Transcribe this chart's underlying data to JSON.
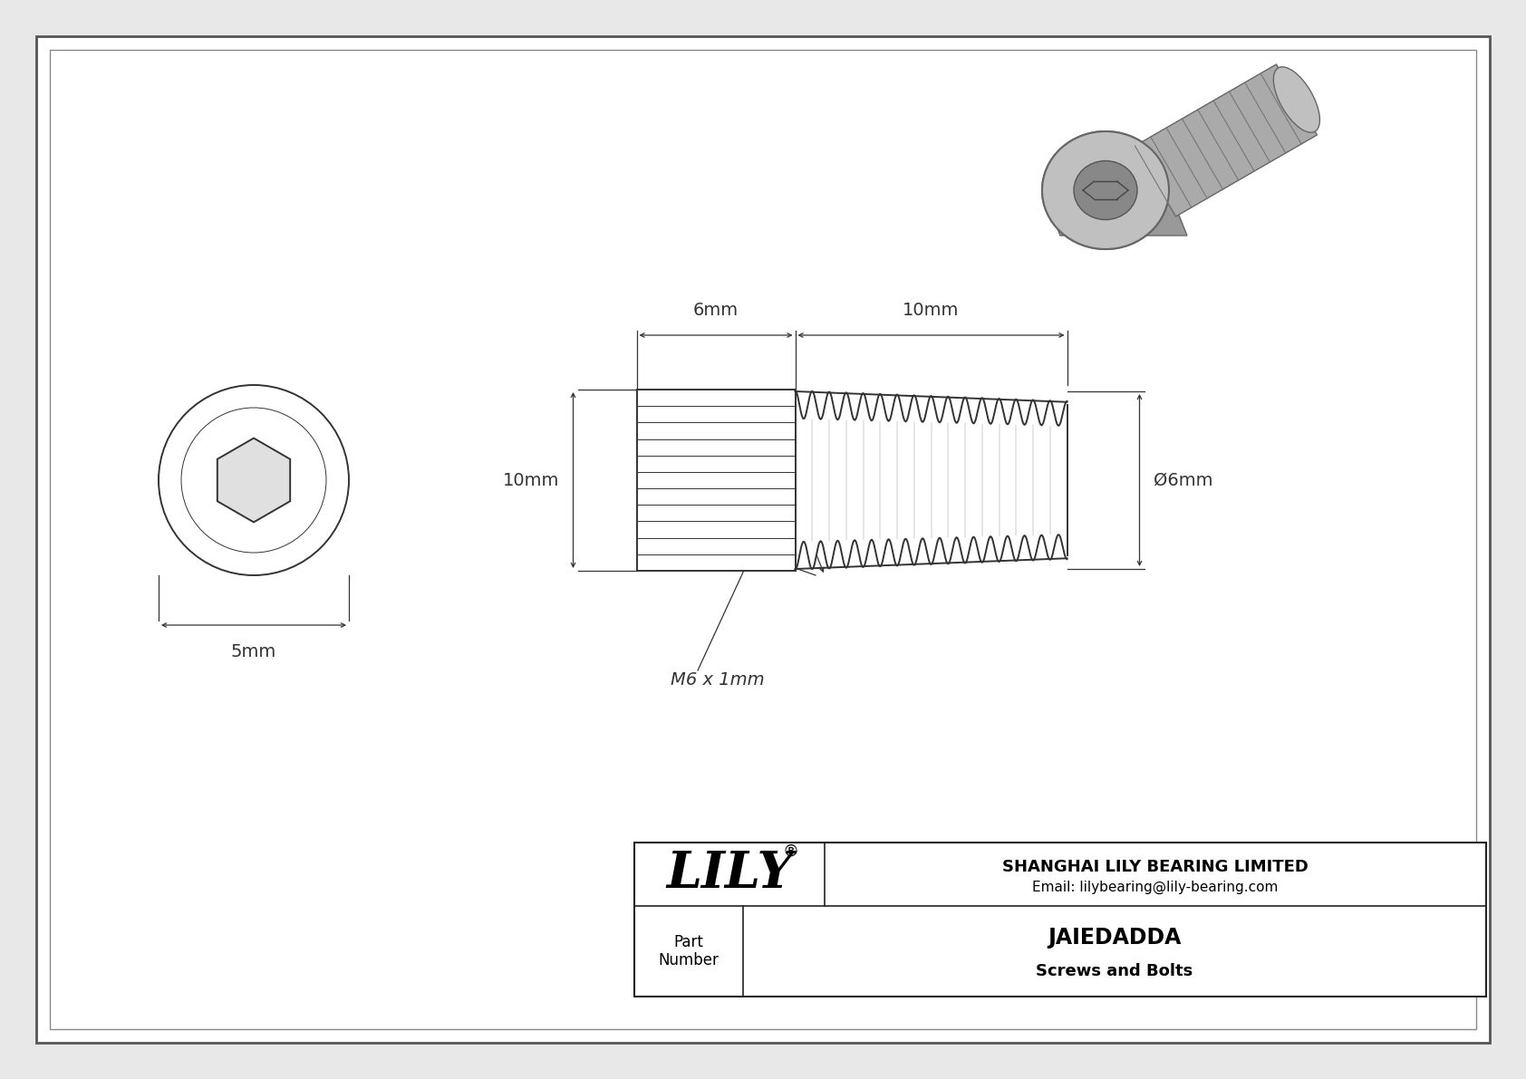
{
  "bg_color": "#e8e8e8",
  "drawing_bg": "#ffffff",
  "border_color": "#555555",
  "line_color": "#333333",
  "dim_color": "#333333",
  "title": "JAIEDADDA",
  "subtitle": "Screws and Bolts",
  "company": "SHANGHAI LILY BEARING LIMITED",
  "email": "Email: lilybearing@lily-bearing.com",
  "part_label": "Part\nNumber",
  "lily_text": "LILY",
  "dim_head_length": "6mm",
  "dim_thread_length": "10mm",
  "dim_height": "10mm",
  "dim_diameter": "Ø6mm",
  "dim_head_diameter": "5mm",
  "thread_label": "M6 x 1mm",
  "border_lw": 2.0,
  "main_lw": 1.4,
  "thin_lw": 0.7,
  "dim_lw": 0.9
}
